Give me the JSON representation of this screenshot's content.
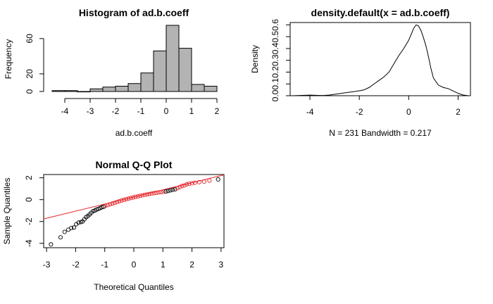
{
  "chart_data": [
    {
      "type": "bar",
      "title": "Histogram of ad.b.coeff",
      "xlabel": "ad.b.coeff",
      "ylabel": "Frequency",
      "bins": [
        {
          "x0": -4.5,
          "x1": -4.0,
          "count": 1
        },
        {
          "x0": -4.0,
          "x1": -3.5,
          "count": 1
        },
        {
          "x0": -3.5,
          "x1": -3.0,
          "count": 0
        },
        {
          "x0": -3.0,
          "x1": -2.5,
          "count": 3
        },
        {
          "x0": -2.5,
          "x1": -2.0,
          "count": 5
        },
        {
          "x0": -2.0,
          "x1": -1.5,
          "count": 6
        },
        {
          "x0": -1.5,
          "x1": -1.0,
          "count": 9
        },
        {
          "x0": -1.0,
          "x1": -0.5,
          "count": 21
        },
        {
          "x0": -0.5,
          "x1": 0.0,
          "count": 46
        },
        {
          "x0": 0.0,
          "x1": 0.5,
          "count": 75
        },
        {
          "x0": 0.5,
          "x1": 1.0,
          "count": 49
        },
        {
          "x0": 1.0,
          "x1": 1.5,
          "count": 8
        },
        {
          "x0": 1.5,
          "x1": 2.0,
          "count": 6
        }
      ],
      "xlim": [
        -4.5,
        2.0
      ],
      "ylim": [
        0,
        75
      ],
      "xticks": [
        -4,
        -3,
        -2,
        -1,
        0,
        1,
        2
      ],
      "yticks": [
        0,
        20,
        60
      ],
      "bar_fill": "#b3b3b3"
    },
    {
      "type": "line",
      "title": "density.default(x = ad.b.coeff)",
      "ylabel": "Density",
      "xlabel": "N = 231   Bandwidth = 0.217",
      "x": [
        -4.7,
        -4.4,
        -4.2,
        -4.0,
        -3.8,
        -3.6,
        -3.4,
        -3.2,
        -3.0,
        -2.8,
        -2.6,
        -2.4,
        -2.2,
        -2.0,
        -1.8,
        -1.6,
        -1.4,
        -1.2,
        -1.0,
        -0.8,
        -0.6,
        -0.4,
        -0.2,
        0.0,
        0.1,
        0.2,
        0.3,
        0.4,
        0.5,
        0.6,
        0.7,
        0.8,
        0.9,
        1.0,
        1.2,
        1.4,
        1.6,
        1.8,
        2.0,
        2.2,
        2.4
      ],
      "y": [
        0.0,
        0.002,
        0.004,
        0.005,
        0.004,
        0.002,
        0.003,
        0.006,
        0.012,
        0.018,
        0.024,
        0.03,
        0.035,
        0.042,
        0.05,
        0.07,
        0.1,
        0.13,
        0.16,
        0.2,
        0.27,
        0.34,
        0.4,
        0.47,
        0.52,
        0.57,
        0.6,
        0.59,
        0.55,
        0.49,
        0.42,
        0.33,
        0.23,
        0.15,
        0.09,
        0.07,
        0.06,
        0.04,
        0.02,
        0.006,
        0.001
      ],
      "xlim": [
        -4.8,
        2.5
      ],
      "ylim": [
        0,
        0.62
      ],
      "xticks": [
        -4,
        -2,
        0,
        2
      ],
      "yticks": [
        0.0,
        0.1,
        0.2,
        0.3,
        0.4,
        0.5,
        0.6
      ]
    },
    {
      "type": "scatter",
      "title": "Normal Q-Q Plot",
      "xlabel": "Theoretical Quantiles",
      "ylabel": "Sample Quantiles",
      "points": [
        [
          -2.85,
          -4.1
        ],
        [
          -2.52,
          -3.45
        ],
        [
          -2.38,
          -2.95
        ],
        [
          -2.25,
          -2.75
        ],
        [
          -2.15,
          -2.6
        ],
        [
          -2.06,
          -2.55
        ],
        [
          -1.98,
          -2.25
        ],
        [
          -1.9,
          -2.1
        ],
        [
          -1.82,
          -2.05
        ],
        [
          -1.76,
          -2.0
        ],
        [
          -1.7,
          -1.8
        ],
        [
          -1.64,
          -1.6
        ],
        [
          -1.58,
          -1.5
        ],
        [
          -1.52,
          -1.35
        ],
        [
          -1.46,
          -1.2
        ],
        [
          -1.4,
          -1.05
        ],
        [
          -1.34,
          -1.0
        ],
        [
          -1.28,
          -0.9
        ],
        [
          -1.22,
          -0.85
        ],
        [
          -1.16,
          -0.78
        ],
        [
          -1.1,
          -0.7
        ],
        [
          -1.04,
          -0.65
        ],
        [
          -0.98,
          -0.58
        ],
        [
          -0.9,
          -0.5
        ],
        [
          -0.82,
          -0.43
        ],
        [
          -0.74,
          -0.36
        ],
        [
          -0.66,
          -0.3
        ],
        [
          -0.58,
          -0.22
        ],
        [
          -0.5,
          -0.15
        ],
        [
          -0.42,
          -0.08
        ],
        [
          -0.34,
          -0.02
        ],
        [
          -0.26,
          0.04
        ],
        [
          -0.18,
          0.1
        ],
        [
          -0.1,
          0.15
        ],
        [
          -0.02,
          0.2
        ],
        [
          0.06,
          0.26
        ],
        [
          0.14,
          0.3
        ],
        [
          0.22,
          0.35
        ],
        [
          0.3,
          0.4
        ],
        [
          0.38,
          0.44
        ],
        [
          0.46,
          0.48
        ],
        [
          0.54,
          0.52
        ],
        [
          0.62,
          0.56
        ],
        [
          0.7,
          0.6
        ],
        [
          0.78,
          0.63
        ],
        [
          0.86,
          0.66
        ],
        [
          0.94,
          0.69
        ],
        [
          1.02,
          0.72
        ],
        [
          1.1,
          0.75
        ],
        [
          1.18,
          0.8
        ],
        [
          1.26,
          0.85
        ],
        [
          1.34,
          0.9
        ],
        [
          1.42,
          0.95
        ],
        [
          1.5,
          1.05
        ],
        [
          1.58,
          1.15
        ],
        [
          1.66,
          1.25
        ],
        [
          1.74,
          1.3
        ],
        [
          1.82,
          1.4
        ],
        [
          1.9,
          1.45
        ],
        [
          2.0,
          1.5
        ],
        [
          2.1,
          1.55
        ],
        [
          2.25,
          1.6
        ],
        [
          2.42,
          1.65
        ],
        [
          2.6,
          1.75
        ],
        [
          2.9,
          1.85
        ]
      ],
      "qq_line": {
        "intercept": 0.25,
        "slope": 0.65,
        "color": "#e6262b"
      },
      "xlim": [
        -3.1,
        3.1
      ],
      "ylim": [
        -4.4,
        2.3
      ],
      "xticks": [
        -3,
        -2,
        -1,
        0,
        1,
        2,
        3
      ],
      "yticks": [
        -4,
        -2,
        0,
        2
      ],
      "point_stroke": "#000000",
      "point_overlay_color": "#e6262b"
    }
  ]
}
